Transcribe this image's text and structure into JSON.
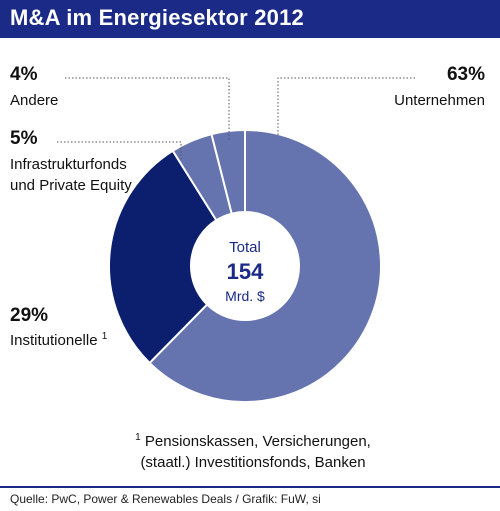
{
  "title": "M&A im Energiesektor 2012",
  "colors": {
    "title_bar": "#1a2a86",
    "dark_segment": "#0b1f6e",
    "light_segment": "#6573ae",
    "segment_border": "#ffffff"
  },
  "center": {
    "label": "Total",
    "value": "154",
    "unit": "Mrd. $"
  },
  "labels": {
    "unternehmen_pct": "63%",
    "unternehmen_name": "Unternehmen",
    "institutionelle_pct": "29%",
    "institutionelle_name": "Institutionelle",
    "institutionelle_sup": "1",
    "infra_pct": "5%",
    "infra_name_line1": "Infrastrukturfonds",
    "infra_name_line2": "und Private Equity",
    "andere_pct": "4%",
    "andere_name": "Andere"
  },
  "footnote": {
    "marker": "1",
    "line1": "Pensionskassen, Versicherungen,",
    "line2": "(staatl.) Investitionsfonds, Banken"
  },
  "source": "Quelle: PwC, Power & Renewables Deals / Grafik: FuW, si",
  "chart_data": {
    "type": "pie",
    "variant": "donut",
    "title": "M&A im Energiesektor 2012",
    "total": 154,
    "total_unit": "Mrd. $",
    "unit": "%",
    "slices": [
      {
        "label": "Unternehmen",
        "value": 63,
        "color": "#6573ae"
      },
      {
        "label": "Institutionelle",
        "value": 29,
        "color": "#0b1f6e"
      },
      {
        "label": "Infrastrukturfonds und Private Equity",
        "value": 5,
        "color": "#6573ae"
      },
      {
        "label": "Andere",
        "value": 4,
        "color": "#6573ae"
      }
    ]
  }
}
